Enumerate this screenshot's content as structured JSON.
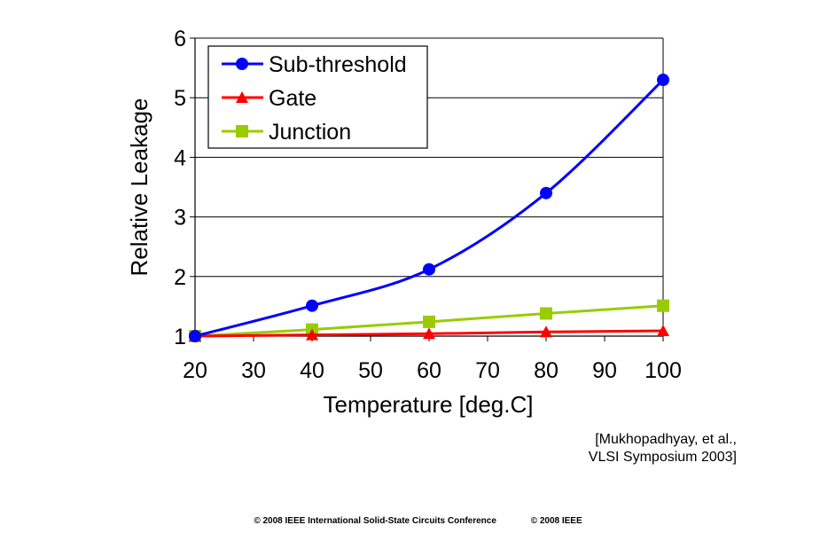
{
  "chart_data": {
    "type": "line",
    "title": "",
    "xlabel": "Temperature [deg.C]",
    "ylabel": "Relative Leakage",
    "xlim": [
      20,
      100
    ],
    "ylim": [
      1,
      6
    ],
    "xticks": [
      20,
      30,
      40,
      50,
      60,
      70,
      80,
      90,
      100
    ],
    "yticks": [
      1,
      2,
      3,
      4,
      5,
      6
    ],
    "grid": "horizontal",
    "legend_position": "top-left",
    "series": [
      {
        "name": "Sub-threshold",
        "color": "#0000ff",
        "marker": "circle",
        "x": [
          20,
          40,
          60,
          80,
          100
        ],
        "y": [
          1.0,
          1.51,
          2.12,
          3.4,
          5.3
        ]
      },
      {
        "name": "Gate",
        "color": "#ff0000",
        "marker": "triangle",
        "x": [
          20,
          40,
          60,
          80,
          100
        ],
        "y": [
          1.0,
          1.02,
          1.04,
          1.07,
          1.09
        ]
      },
      {
        "name": "Junction",
        "color": "#99cc00",
        "marker": "square",
        "x": [
          20,
          40,
          60,
          80,
          100
        ],
        "y": [
          1.0,
          1.11,
          1.24,
          1.38,
          1.51
        ]
      }
    ]
  },
  "citation": {
    "line1": "[Mukhopadhyay, et al.,",
    "line2": "VLSI Symposium 2003]"
  },
  "footer": {
    "left": "© 2008 IEEE International Solid-State Circuits Conference",
    "right": "© 2008 IEEE"
  }
}
